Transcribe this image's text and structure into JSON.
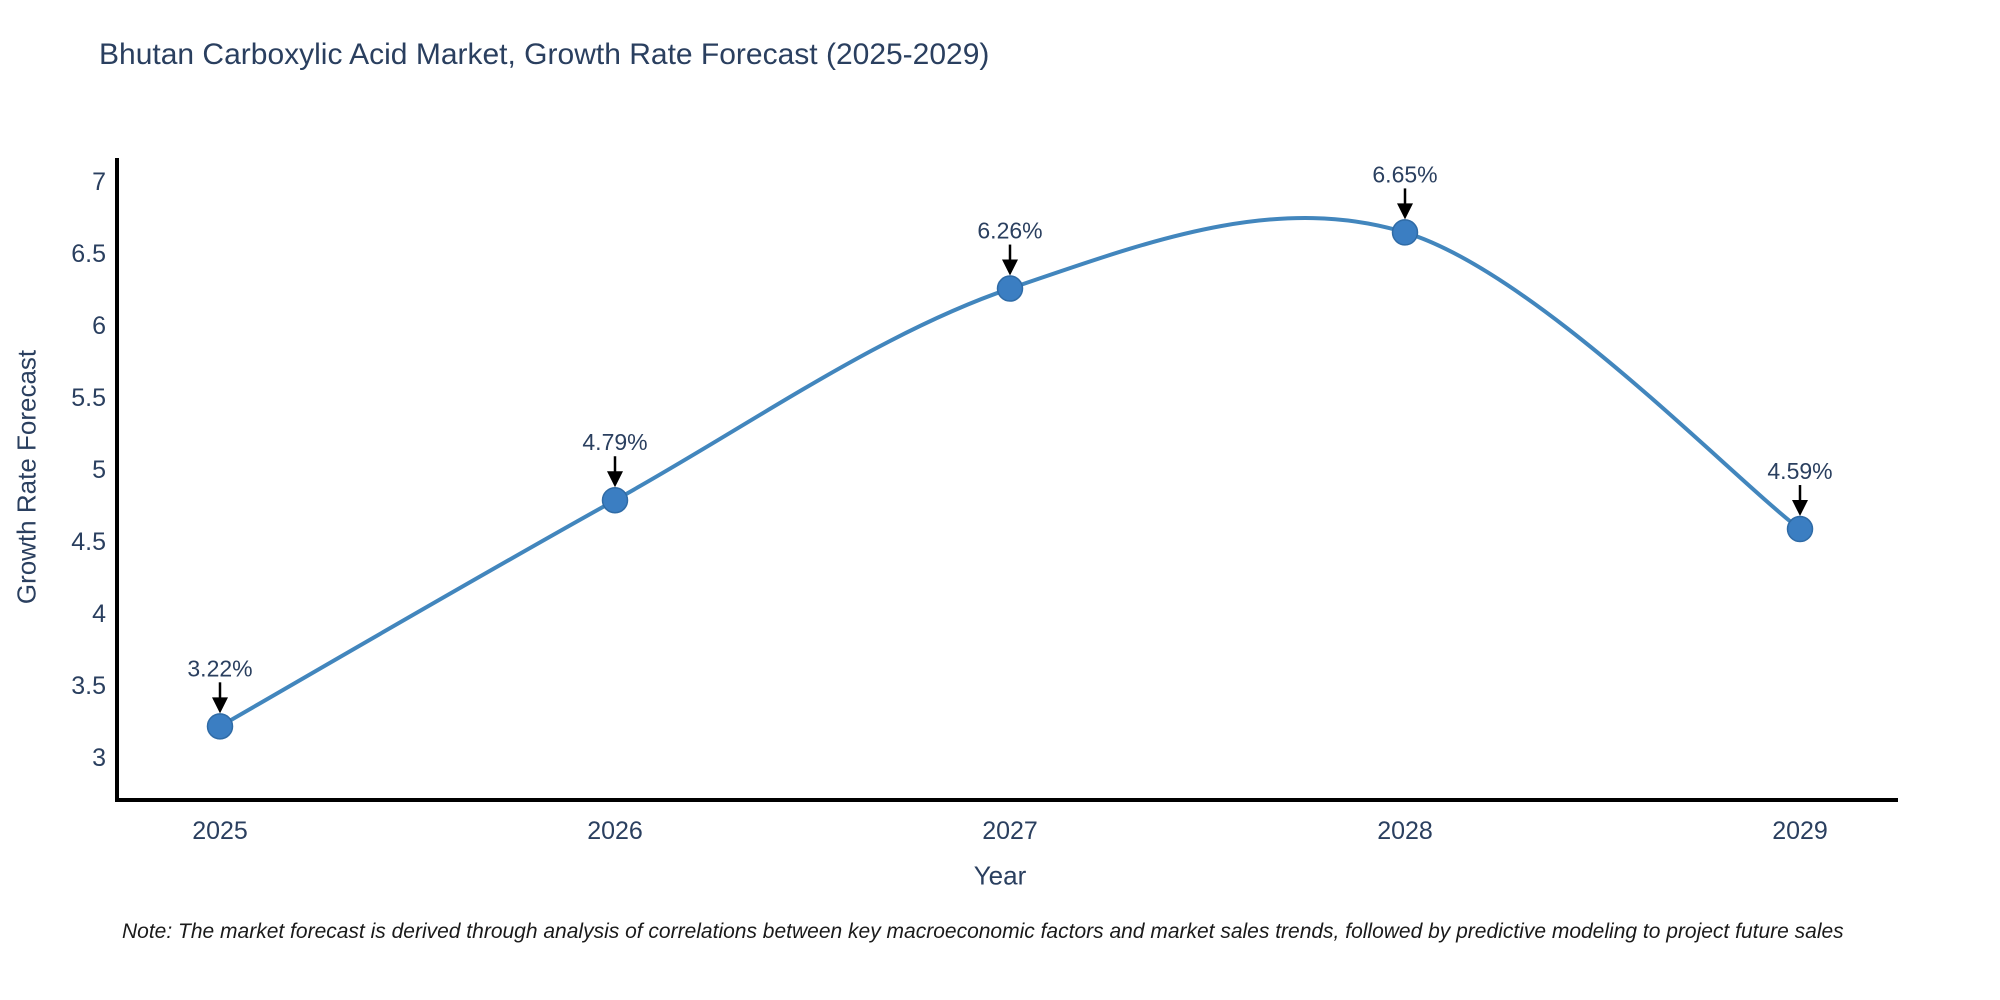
{
  "chart_data": {
    "type": "line",
    "line_shape": "spline",
    "title": "Bhutan Carboxylic Acid Market, Growth Rate Forecast (2025-2029)",
    "xlabel": "Year",
    "ylabel": "Growth Rate Forecast",
    "x": [
      "2025",
      "2026",
      "2027",
      "2028",
      "2029"
    ],
    "values": [
      3.22,
      4.79,
      6.26,
      6.65,
      4.59
    ],
    "point_labels": [
      "3.22%",
      "4.79%",
      "6.26%",
      "6.65%",
      "4.59%"
    ],
    "yticks": [
      3,
      3.5,
      4,
      4.5,
      5,
      5.5,
      6,
      6.5,
      7
    ],
    "ytick_labels": [
      "3",
      "3.5",
      "4",
      "4.5",
      "5",
      "5.5",
      "6",
      "6.5",
      "7"
    ],
    "ylim": [
      2.7,
      7.15
    ],
    "grid": false,
    "legend": "none",
    "markers": true,
    "annotation_arrows": true,
    "note": "Note: The market forecast is derived through analysis of correlations between key macroeconomic factors and market sales trends, followed by predictive modeling to project future sales",
    "colors": {
      "line": "#4286bd",
      "marker": "#3b7ec2",
      "marker_edge": "#2f6ba6",
      "axis": "#000000",
      "arrow": "#000000",
      "text": "#2a3f5f",
      "note_text": "#1a1a1a",
      "background": "#ffffff"
    }
  }
}
